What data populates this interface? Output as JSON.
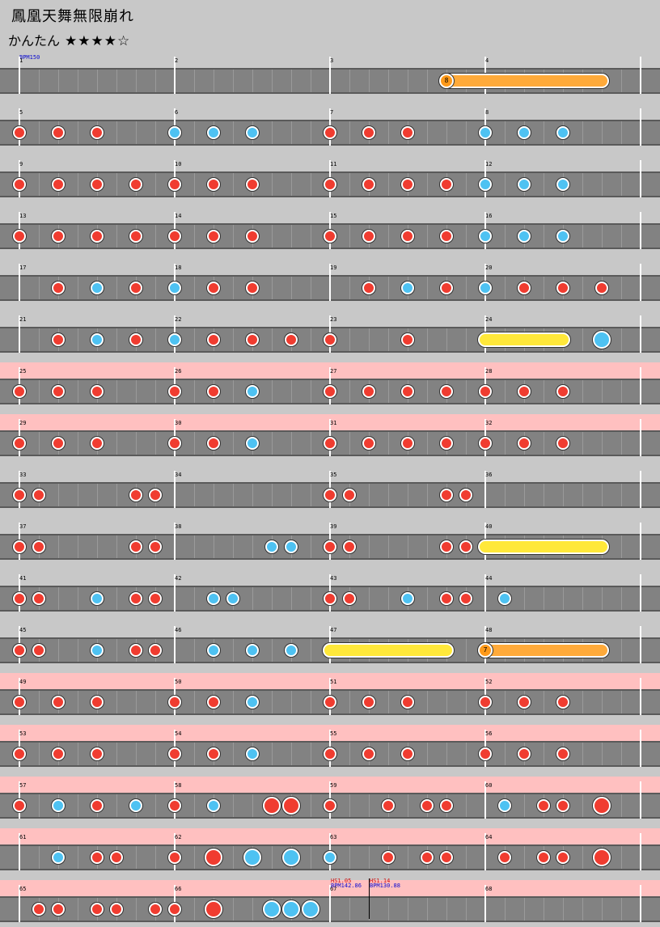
{
  "title": "鳳凰天舞無限崩れ",
  "difficulty": {
    "label": "かんたん",
    "stars": "★★★★☆"
  },
  "initial_bpm": "BPM150",
  "colors": {
    "don": "#f03c30",
    "ka": "#4ec2f2",
    "drumroll": "#ffe83a",
    "balloon": "#ffaa3a",
    "gogo": "#ffc0c0",
    "lane": "#828282"
  },
  "measure_numbers": [
    "1",
    "2",
    "3",
    "4",
    "5",
    "6",
    "7",
    "8",
    "9",
    "10",
    "11",
    "12",
    "13",
    "14",
    "15",
    "16",
    "17",
    "18",
    "19",
    "20",
    "21",
    "22",
    "23",
    "24",
    "25",
    "26",
    "27",
    "28",
    "29",
    "30",
    "31",
    "32",
    "33",
    "34",
    "35",
    "36",
    "37",
    "38",
    "39",
    "40",
    "41",
    "42",
    "43",
    "44",
    "45",
    "46",
    "47",
    "48",
    "49",
    "50",
    "51",
    "52",
    "53",
    "54",
    "55",
    "56",
    "57",
    "58",
    "59",
    "60",
    "61",
    "62",
    "63",
    "64",
    "65",
    "66",
    "67",
    "68"
  ],
  "gogo_rows": [
    6,
    7,
    12,
    13,
    14,
    15,
    16
  ],
  "rows": [
    {
      "notes": [],
      "rolls": [
        {
          "type": "balloon",
          "start": 2.75,
          "end": 3.75,
          "count": "8"
        }
      ]
    },
    {
      "notes": [
        [
          0,
          "d"
        ],
        [
          0.25,
          "d"
        ],
        [
          0.5,
          "d"
        ],
        [
          1,
          "k"
        ],
        [
          1.25,
          "k"
        ],
        [
          1.5,
          "k"
        ],
        [
          2,
          "d"
        ],
        [
          2.25,
          "d"
        ],
        [
          2.5,
          "d"
        ],
        [
          3,
          "k"
        ],
        [
          3.25,
          "k"
        ],
        [
          3.5,
          "k"
        ]
      ]
    },
    {
      "notes": [
        [
          0,
          "d"
        ],
        [
          0.25,
          "d"
        ],
        [
          0.5,
          "d"
        ],
        [
          0.75,
          "d"
        ],
        [
          1,
          "d"
        ],
        [
          1.25,
          "d"
        ],
        [
          1.5,
          "d"
        ],
        [
          2,
          "d"
        ],
        [
          2.25,
          "d"
        ],
        [
          2.5,
          "d"
        ],
        [
          2.75,
          "d"
        ],
        [
          3,
          "k"
        ],
        [
          3.25,
          "k"
        ],
        [
          3.5,
          "k"
        ]
      ]
    },
    {
      "notes": [
        [
          0,
          "d"
        ],
        [
          0.25,
          "d"
        ],
        [
          0.5,
          "d"
        ],
        [
          0.75,
          "d"
        ],
        [
          1,
          "d"
        ],
        [
          1.25,
          "d"
        ],
        [
          1.5,
          "d"
        ],
        [
          2,
          "d"
        ],
        [
          2.25,
          "d"
        ],
        [
          2.5,
          "d"
        ],
        [
          2.75,
          "d"
        ],
        [
          3,
          "k"
        ],
        [
          3.25,
          "k"
        ],
        [
          3.5,
          "k"
        ]
      ]
    },
    {
      "notes": [
        [
          0.25,
          "d"
        ],
        [
          0.5,
          "k"
        ],
        [
          0.75,
          "d"
        ],
        [
          1,
          "k"
        ],
        [
          1.25,
          "d"
        ],
        [
          1.5,
          "d"
        ],
        [
          2.25,
          "d"
        ],
        [
          2.5,
          "k"
        ],
        [
          2.75,
          "d"
        ],
        [
          3,
          "k"
        ],
        [
          3.25,
          "d"
        ],
        [
          3.5,
          "d"
        ],
        [
          3.75,
          "d"
        ]
      ]
    },
    {
      "notes": [
        [
          0.25,
          "d"
        ],
        [
          0.5,
          "k"
        ],
        [
          0.75,
          "d"
        ],
        [
          1,
          "k"
        ],
        [
          1.25,
          "d"
        ],
        [
          1.5,
          "d"
        ],
        [
          1.75,
          "d"
        ],
        [
          2,
          "d"
        ],
        [
          2.5,
          "d"
        ],
        [
          3.75,
          "K"
        ]
      ],
      "rolls": [
        {
          "type": "roll",
          "start": 3,
          "end": 3.5
        }
      ]
    },
    {
      "notes": [
        [
          0,
          "d"
        ],
        [
          0.25,
          "d"
        ],
        [
          0.5,
          "d"
        ],
        [
          1,
          "d"
        ],
        [
          1.25,
          "d"
        ],
        [
          1.5,
          "k"
        ],
        [
          2,
          "d"
        ],
        [
          2.25,
          "d"
        ],
        [
          2.5,
          "d"
        ],
        [
          2.75,
          "d"
        ],
        [
          3,
          "d"
        ],
        [
          3.25,
          "d"
        ],
        [
          3.5,
          "d"
        ]
      ]
    },
    {
      "notes": [
        [
          0,
          "d"
        ],
        [
          0.25,
          "d"
        ],
        [
          0.5,
          "d"
        ],
        [
          1,
          "d"
        ],
        [
          1.25,
          "d"
        ],
        [
          1.5,
          "k"
        ],
        [
          2,
          "d"
        ],
        [
          2.25,
          "d"
        ],
        [
          2.5,
          "d"
        ],
        [
          2.75,
          "d"
        ],
        [
          3,
          "d"
        ],
        [
          3.25,
          "d"
        ],
        [
          3.5,
          "d"
        ]
      ]
    },
    {
      "notes": [
        [
          0,
          "d"
        ],
        [
          0.125,
          "d"
        ],
        [
          0.75,
          "d"
        ],
        [
          0.875,
          "d"
        ],
        [
          2,
          "d"
        ],
        [
          2.125,
          "d"
        ],
        [
          2.75,
          "d"
        ],
        [
          2.875,
          "d"
        ]
      ]
    },
    {
      "notes": [
        [
          0,
          "d"
        ],
        [
          0.125,
          "d"
        ],
        [
          0.75,
          "d"
        ],
        [
          0.875,
          "d"
        ],
        [
          1.625,
          "k"
        ],
        [
          1.75,
          "k"
        ],
        [
          2,
          "d"
        ],
        [
          2.125,
          "d"
        ],
        [
          2.75,
          "d"
        ],
        [
          2.875,
          "d"
        ]
      ],
      "rolls": [
        {
          "type": "roll",
          "start": 3,
          "end": 3.75
        }
      ]
    },
    {
      "notes": [
        [
          0,
          "d"
        ],
        [
          0.125,
          "d"
        ],
        [
          0.5,
          "k"
        ],
        [
          0.75,
          "d"
        ],
        [
          0.875,
          "d"
        ],
        [
          1.25,
          "k"
        ],
        [
          1.375,
          "k"
        ],
        [
          2,
          "d"
        ],
        [
          2.125,
          "d"
        ],
        [
          2.5,
          "k"
        ],
        [
          2.75,
          "d"
        ],
        [
          2.875,
          "d"
        ],
        [
          3.125,
          "k"
        ]
      ]
    },
    {
      "notes": [
        [
          0,
          "d"
        ],
        [
          0.125,
          "d"
        ],
        [
          0.5,
          "k"
        ],
        [
          0.75,
          "d"
        ],
        [
          0.875,
          "d"
        ],
        [
          1.25,
          "k"
        ],
        [
          1.5,
          "k"
        ],
        [
          1.75,
          "k"
        ]
      ],
      "rolls": [
        {
          "type": "roll",
          "start": 2,
          "end": 2.75
        },
        {
          "type": "balloon",
          "start": 3,
          "end": 3.75,
          "count": "7"
        }
      ]
    },
    {
      "notes": [
        [
          0,
          "d"
        ],
        [
          0.25,
          "d"
        ],
        [
          0.5,
          "d"
        ],
        [
          1,
          "d"
        ],
        [
          1.25,
          "d"
        ],
        [
          1.5,
          "k"
        ],
        [
          2,
          "d"
        ],
        [
          2.25,
          "d"
        ],
        [
          2.5,
          "d"
        ],
        [
          3,
          "d"
        ],
        [
          3.25,
          "d"
        ],
        [
          3.5,
          "d"
        ]
      ]
    },
    {
      "notes": [
        [
          0,
          "d"
        ],
        [
          0.25,
          "d"
        ],
        [
          0.5,
          "d"
        ],
        [
          1,
          "d"
        ],
        [
          1.25,
          "d"
        ],
        [
          1.5,
          "k"
        ],
        [
          2,
          "d"
        ],
        [
          2.25,
          "d"
        ],
        [
          2.5,
          "d"
        ],
        [
          3,
          "d"
        ],
        [
          3.25,
          "d"
        ],
        [
          3.5,
          "d"
        ]
      ]
    },
    {
      "notes": [
        [
          0,
          "d"
        ],
        [
          0.25,
          "k"
        ],
        [
          0.5,
          "d"
        ],
        [
          0.75,
          "k"
        ],
        [
          1,
          "d"
        ],
        [
          1.25,
          "k"
        ],
        [
          1.625,
          "D"
        ],
        [
          1.75,
          "D"
        ],
        [
          2,
          "d"
        ],
        [
          2.375,
          "d"
        ],
        [
          2.625,
          "d"
        ],
        [
          2.75,
          "d"
        ],
        [
          3.125,
          "k"
        ],
        [
          3.375,
          "d"
        ],
        [
          3.5,
          "d"
        ],
        [
          3.75,
          "D"
        ]
      ]
    },
    {
      "notes": [
        [
          0.25,
          "k"
        ],
        [
          0.5,
          "d"
        ],
        [
          0.625,
          "d"
        ],
        [
          1,
          "d"
        ],
        [
          1.25,
          "D"
        ],
        [
          1.5,
          "K"
        ],
        [
          1.75,
          "K"
        ],
        [
          2,
          "k"
        ],
        [
          2.375,
          "d"
        ],
        [
          2.625,
          "d"
        ],
        [
          2.75,
          "d"
        ],
        [
          3.125,
          "d"
        ],
        [
          3.375,
          "d"
        ],
        [
          3.5,
          "d"
        ],
        [
          3.75,
          "D"
        ]
      ]
    },
    {
      "notes": [
        [
          0.125,
          "d"
        ],
        [
          0.25,
          "d"
        ],
        [
          0.5,
          "d"
        ],
        [
          0.625,
          "d"
        ],
        [
          0.875,
          "d"
        ],
        [
          1,
          "d"
        ],
        [
          1.25,
          "D"
        ],
        [
          1.625,
          "K"
        ],
        [
          1.75,
          "K"
        ],
        [
          1.875,
          "K"
        ]
      ]
    }
  ],
  "markers": {
    "hs1": "HS1.05",
    "hs2": "HS1.14",
    "bpm1": "BPM142.86",
    "bpm2": "BPM130.88"
  }
}
